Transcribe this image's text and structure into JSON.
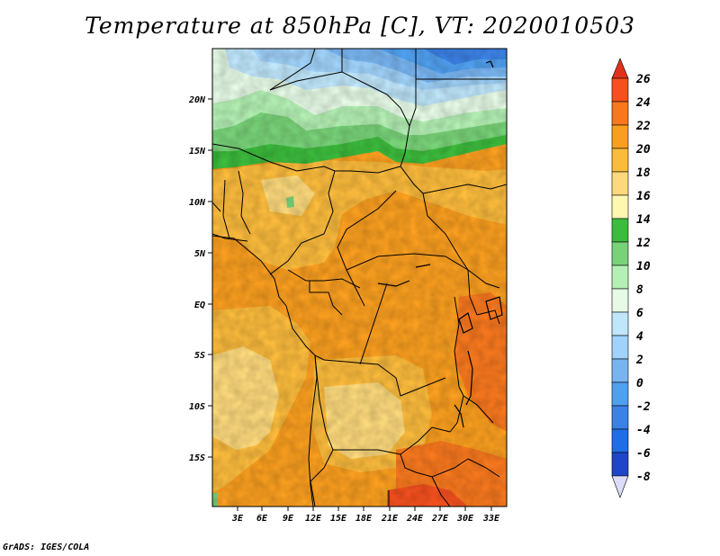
{
  "title": "Temperature at 850hPa [C], VT: 2020010503",
  "credit": "GrADS: IGES/COLA",
  "map": {
    "lon_range": [
      -1,
      35
    ],
    "lat_range": [
      -20,
      25
    ],
    "lat_labels": [
      "20N",
      "15N",
      "10N",
      "5N",
      "EQ",
      "5S",
      "10S",
      "15S"
    ],
    "lon_labels": [
      "3E",
      "6E",
      "9E",
      "12E",
      "15E",
      "18E",
      "21E",
      "24E",
      "27E",
      "30E",
      "33E"
    ]
  },
  "colorbar": {
    "labels": [
      "26",
      "24",
      "22",
      "20",
      "18",
      "16",
      "14",
      "12",
      "10",
      "8",
      "6",
      "4",
      "2",
      "0",
      "-2",
      "-4",
      "-6",
      "-8"
    ],
    "colors": {
      "c26plus": "#e0321e",
      "c24": "#f5501e",
      "c22": "#f8781e",
      "c20": "#f99e1f",
      "c18": "#fbbb3c",
      "c16": "#fcd97c",
      "c14": "#fef7b0",
      "c12": "#3cbc3c",
      "c10": "#78d278",
      "c8": "#b4f0b4",
      "c6": "#e6fae6",
      "c4": "#bfe6fb",
      "c2": "#a0d2fa",
      "c0": "#78b4f0",
      "cm2": "#50a0f0",
      "cm4": "#3c82e6",
      "cm6": "#1f6ee6",
      "cm8": "#1f46c8",
      "cmin": "#0a1e78",
      "cmin_tri": "#dcdcf8"
    }
  }
}
